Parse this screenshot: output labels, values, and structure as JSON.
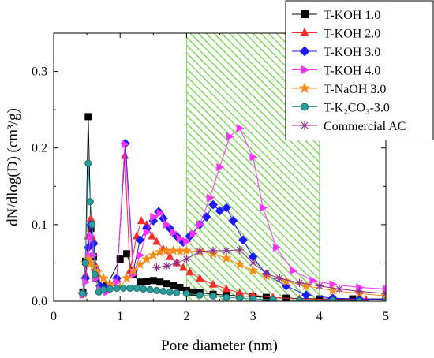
{
  "chart_data": {
    "type": "line",
    "xlabel": "Pore diameter (nm)",
    "ylabel": "dN/dlog(D) (cm³/g)",
    "xlim": [
      0,
      5
    ],
    "ylim": [
      0,
      0.35
    ],
    "xticks": [
      "0",
      "1",
      "2",
      "3",
      "4",
      "5"
    ],
    "yticks": [
      "0.0",
      "0.1",
      "0.2",
      "0.3"
    ],
    "x_tick_values": [
      0,
      1,
      2,
      3,
      4,
      5
    ],
    "y_tick_values": [
      0,
      0.1,
      0.2,
      0.3
    ],
    "legend_position": "top-right",
    "shaded_region": {
      "x": [
        2,
        4
      ],
      "color": "#7ed957",
      "pattern": "diagonal-hatch"
    },
    "series": [
      {
        "name": "T-KOH 1.0",
        "color": "#000000",
        "marker": "square",
        "x": [
          0.44,
          0.48,
          0.52,
          0.56,
          0.6,
          0.64,
          0.7,
          0.8,
          1.0,
          1.1,
          1.2,
          1.3,
          1.4,
          1.5,
          1.6,
          1.7,
          1.8,
          1.9,
          2.0,
          2.1,
          2.2,
          2.4,
          2.6,
          2.8,
          3.0,
          3.2,
          3.5,
          4.0,
          4.5,
          5.0
        ],
        "y": [
          0.012,
          0.052,
          0.241,
          0.095,
          0.058,
          0.03,
          0.018,
          0.02,
          0.055,
          0.062,
          0.035,
          0.025,
          0.026,
          0.027,
          0.025,
          0.023,
          0.021,
          0.018,
          0.014,
          0.012,
          0.011,
          0.009,
          0.008,
          0.007,
          0.006,
          0.005,
          0.004,
          0.003,
          0.003,
          0.003
        ]
      },
      {
        "name": "T-KOH 2.0",
        "color": "#ff2a2a",
        "marker": "triangle-up",
        "x": [
          0.44,
          0.48,
          0.52,
          0.56,
          0.6,
          0.64,
          0.7,
          0.8,
          0.95,
          1.07,
          1.15,
          1.25,
          1.32,
          1.4,
          1.48,
          1.55,
          1.65,
          1.75,
          1.85,
          1.95,
          2.05,
          2.2,
          2.4,
          2.6,
          2.8,
          3.0,
          3.3,
          3.7,
          4.2,
          4.7,
          5.0
        ],
        "y": [
          0.01,
          0.035,
          0.085,
          0.108,
          0.08,
          0.045,
          0.02,
          0.018,
          0.03,
          0.19,
          0.04,
          0.085,
          0.105,
          0.1,
          0.085,
          0.078,
          0.068,
          0.058,
          0.05,
          0.044,
          0.038,
          0.03,
          0.022,
          0.016,
          0.011,
          0.008,
          0.005,
          0.003,
          0.002,
          0.002,
          0.002
        ]
      },
      {
        "name": "T-KOH 3.0",
        "color": "#1a1aff",
        "marker": "diamond",
        "x": [
          0.44,
          0.48,
          0.52,
          0.56,
          0.6,
          0.64,
          0.7,
          0.8,
          0.95,
          1.08,
          1.2,
          1.3,
          1.4,
          1.5,
          1.58,
          1.65,
          1.75,
          1.85,
          1.95,
          2.05,
          2.2,
          2.3,
          2.4,
          2.5,
          2.6,
          2.7,
          2.85,
          3.0,
          3.2,
          3.5,
          3.8,
          4.2,
          4.6,
          5.0
        ],
        "y": [
          0.01,
          0.03,
          0.07,
          0.1,
          0.075,
          0.04,
          0.02,
          0.018,
          0.03,
          0.206,
          0.04,
          0.08,
          0.095,
          0.105,
          0.117,
          0.108,
          0.095,
          0.085,
          0.077,
          0.085,
          0.1,
          0.11,
          0.126,
          0.118,
          0.122,
          0.105,
          0.08,
          0.058,
          0.035,
          0.02,
          0.008,
          0.004,
          0.003,
          0.002
        ]
      },
      {
        "name": "T-KOH 4.0",
        "color": "#ff33ff",
        "marker": "triangle-right",
        "x": [
          0.44,
          0.48,
          0.52,
          0.56,
          0.6,
          0.64,
          0.7,
          0.8,
          0.95,
          1.07,
          1.2,
          1.3,
          1.4,
          1.5,
          1.6,
          1.7,
          1.8,
          1.9,
          2.0,
          2.1,
          2.2,
          2.35,
          2.5,
          2.65,
          2.8,
          3.0,
          3.15,
          3.35,
          3.6,
          3.9,
          4.2,
          4.6,
          5.0
        ],
        "y": [
          0.008,
          0.025,
          0.06,
          0.085,
          0.06,
          0.03,
          0.015,
          0.012,
          0.025,
          0.205,
          0.035,
          0.06,
          0.09,
          0.11,
          0.115,
          0.1,
          0.09,
          0.082,
          0.078,
          0.088,
          0.1,
          0.135,
          0.175,
          0.215,
          0.226,
          0.188,
          0.122,
          0.07,
          0.04,
          0.027,
          0.022,
          0.018,
          0.016
        ]
      },
      {
        "name": "T-NaOH 3.0",
        "color": "#ff8c1a",
        "marker": "star",
        "x": [
          0.44,
          0.48,
          0.52,
          0.56,
          0.6,
          0.66,
          0.75,
          0.85,
          1.0,
          1.1,
          1.2,
          1.3,
          1.4,
          1.5,
          1.6,
          1.7,
          1.8,
          1.9,
          2.0,
          2.2,
          2.4,
          2.6,
          2.8,
          3.0,
          3.2,
          3.5,
          3.8,
          4.2,
          4.6,
          5.0
        ],
        "y": [
          0.01,
          0.05,
          0.055,
          0.05,
          0.045,
          0.038,
          0.03,
          0.022,
          0.018,
          0.03,
          0.04,
          0.048,
          0.055,
          0.06,
          0.064,
          0.066,
          0.066,
          0.065,
          0.066,
          0.065,
          0.062,
          0.056,
          0.048,
          0.04,
          0.033,
          0.026,
          0.02,
          0.014,
          0.01,
          0.007
        ]
      },
      {
        "name": "T-K₂CO₃-3.0",
        "color": "#2a9d9d",
        "marker": "circle",
        "x": [
          0.44,
          0.48,
          0.52,
          0.55,
          0.58,
          0.62,
          0.68,
          0.75,
          0.85,
          0.95,
          1.05,
          1.15,
          1.25,
          1.35,
          1.45,
          1.55,
          1.65,
          1.75,
          1.85,
          2.0,
          2.2,
          2.4,
          2.6,
          2.8,
          3.0,
          3.3,
          3.7,
          4.2,
          4.6,
          5.0
        ],
        "y": [
          0.01,
          0.05,
          0.18,
          0.13,
          0.1,
          0.035,
          0.012,
          0.015,
          0.016,
          0.017,
          0.017,
          0.017,
          0.017,
          0.016,
          0.015,
          0.014,
          0.013,
          0.012,
          0.011,
          0.01,
          0.008,
          0.007,
          0.005,
          0.004,
          0.003,
          0.002,
          0.001,
          0.001,
          0.0,
          0.0
        ]
      },
      {
        "name": "Commercial AC",
        "color": "#8b2e8b",
        "marker": "asterisk",
        "x": [
          1.55,
          1.7,
          1.85,
          2.0,
          2.2,
          2.4,
          2.6,
          2.8,
          3.0,
          3.2,
          3.4,
          3.7,
          4.0,
          4.3,
          4.6,
          5.0
        ],
        "y": [
          0.044,
          0.046,
          0.05,
          0.055,
          0.065,
          0.066,
          0.066,
          0.067,
          0.05,
          0.036,
          0.03,
          0.024,
          0.02,
          0.016,
          0.013,
          0.01
        ]
      }
    ]
  }
}
